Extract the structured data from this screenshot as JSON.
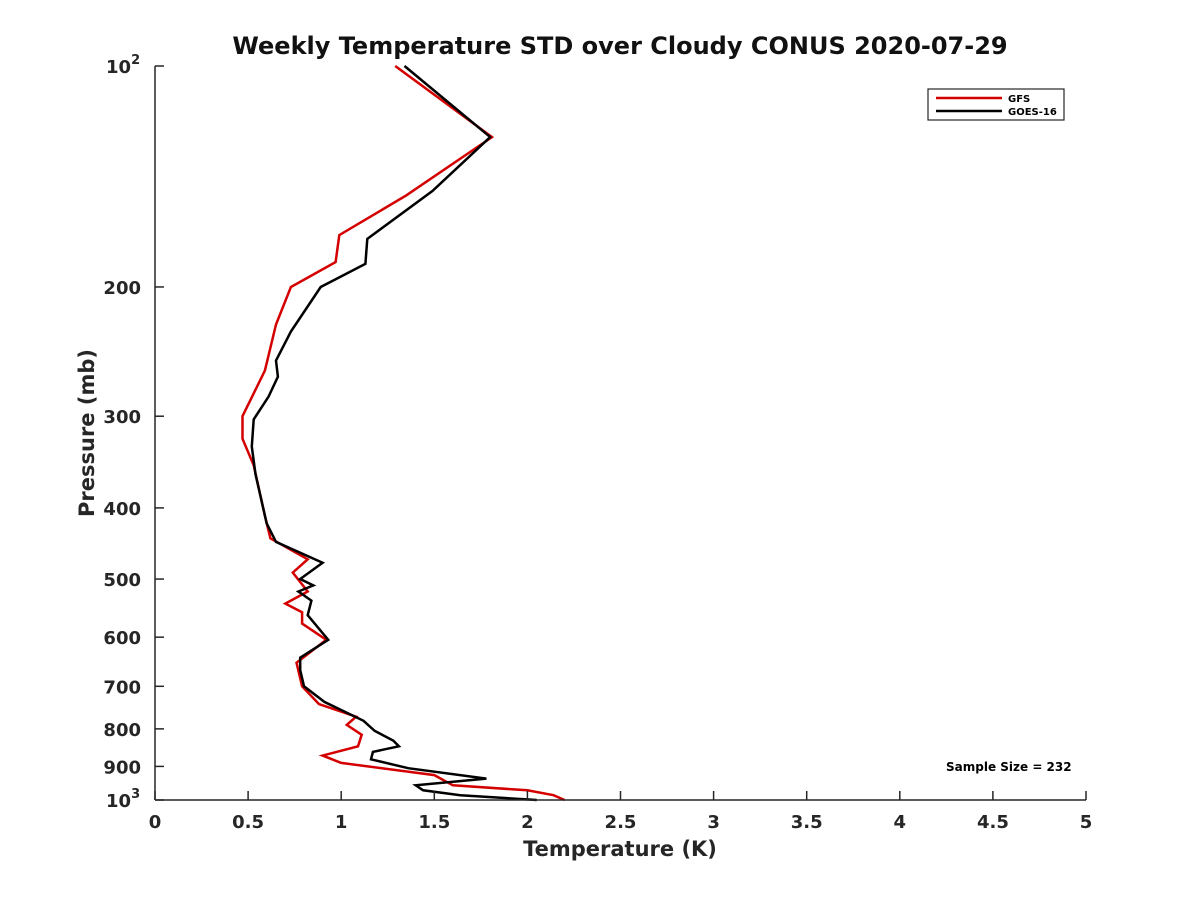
{
  "chart_data": {
    "type": "line",
    "title": "Weekly Temperature STD over Cloudy CONUS 2020-07-29",
    "xlabel": "Temperature (K)",
    "ylabel": "Pressure (mb)",
    "xlim": [
      0,
      5
    ],
    "ylim": [
      100,
      1000
    ],
    "y_scale": "log",
    "y_reversed": true,
    "x_ticks": [
      0,
      0.5,
      1,
      1.5,
      2,
      2.5,
      3,
      3.5,
      4,
      4.5,
      5
    ],
    "x_tick_labels": [
      "0",
      "0.5",
      "1",
      "1.5",
      "2",
      "2.5",
      "3",
      "3.5",
      "4",
      "4.5",
      "5"
    ],
    "y_ticks": [
      100,
      200,
      300,
      400,
      500,
      600,
      700,
      800,
      900,
      1000
    ],
    "y_tick_labels": [
      {
        "base": "10",
        "exp": "2"
      },
      {
        "base": "200"
      },
      {
        "base": "300"
      },
      {
        "base": "400"
      },
      {
        "base": "500"
      },
      {
        "base": "600"
      },
      {
        "base": "700"
      },
      {
        "base": "800"
      },
      {
        "base": "900"
      },
      {
        "base": "10",
        "exp": "3"
      }
    ],
    "legend_position": "top-right",
    "annotation": "Sample Size = 232",
    "series": [
      {
        "name": "GFS",
        "color": "#d40000",
        "points": [
          [
            1.29,
            100
          ],
          [
            1.81,
            125
          ],
          [
            1.35,
            150
          ],
          [
            0.99,
            170
          ],
          [
            0.97,
            185
          ],
          [
            0.73,
            200
          ],
          [
            0.65,
            225
          ],
          [
            0.59,
            260
          ],
          [
            0.47,
            300
          ],
          [
            0.47,
            322
          ],
          [
            0.53,
            350
          ],
          [
            0.59,
            410
          ],
          [
            0.62,
            440
          ],
          [
            0.82,
            470
          ],
          [
            0.74,
            490
          ],
          [
            0.82,
            520
          ],
          [
            0.7,
            540
          ],
          [
            0.79,
            555
          ],
          [
            0.79,
            575
          ],
          [
            0.92,
            605
          ],
          [
            0.76,
            650
          ],
          [
            0.79,
            700
          ],
          [
            0.88,
            740
          ],
          [
            1.08,
            770
          ],
          [
            1.03,
            790
          ],
          [
            1.11,
            815
          ],
          [
            1.09,
            845
          ],
          [
            0.9,
            870
          ],
          [
            1.0,
            890
          ],
          [
            1.5,
            925
          ],
          [
            1.6,
            955
          ],
          [
            2.0,
            970
          ],
          [
            2.14,
            985
          ],
          [
            2.2,
            1000
          ]
        ]
      },
      {
        "name": "GOES-16",
        "color": "#000000",
        "points": [
          [
            1.34,
            100
          ],
          [
            1.8,
            125
          ],
          [
            1.49,
            148
          ],
          [
            1.14,
            172
          ],
          [
            1.13,
            186
          ],
          [
            0.89,
            200
          ],
          [
            0.73,
            230
          ],
          [
            0.65,
            252
          ],
          [
            0.66,
            265
          ],
          [
            0.61,
            282
          ],
          [
            0.53,
            303
          ],
          [
            0.52,
            330
          ],
          [
            0.54,
            360
          ],
          [
            0.6,
            420
          ],
          [
            0.65,
            445
          ],
          [
            0.9,
            475
          ],
          [
            0.78,
            500
          ],
          [
            0.85,
            510
          ],
          [
            0.77,
            520
          ],
          [
            0.84,
            535
          ],
          [
            0.82,
            560
          ],
          [
            0.93,
            605
          ],
          [
            0.78,
            640
          ],
          [
            0.78,
            665
          ],
          [
            0.8,
            700
          ],
          [
            0.91,
            735
          ],
          [
            1.12,
            780
          ],
          [
            1.18,
            805
          ],
          [
            1.28,
            830
          ],
          [
            1.31,
            845
          ],
          [
            1.17,
            860
          ],
          [
            1.16,
            880
          ],
          [
            1.36,
            905
          ],
          [
            1.78,
            935
          ],
          [
            1.4,
            955
          ],
          [
            1.44,
            970
          ],
          [
            1.64,
            985
          ],
          [
            2.05,
            1000
          ]
        ]
      }
    ]
  }
}
